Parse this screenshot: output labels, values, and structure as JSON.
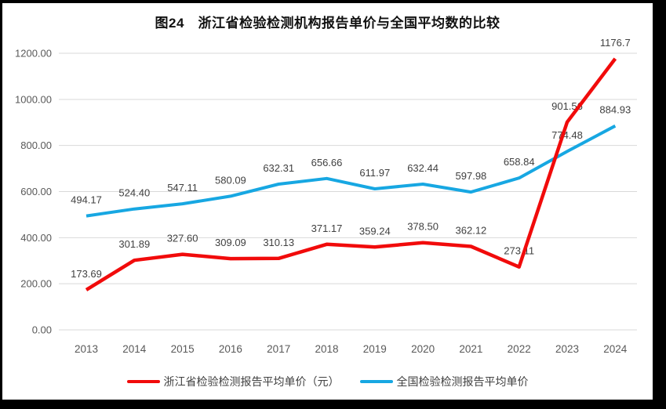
{
  "title": "图24　浙江省检验检测机构报告单价与全国平均数的比较",
  "colors": {
    "frame": "#000000",
    "canvas": "#ffffff",
    "grid": "#d9d9d9",
    "tick_text": "#595959",
    "data_label": "#404040",
    "legend_text": "#404040",
    "zhejiang_red": "#f10b0b",
    "national_blue": "#17a7e2"
  },
  "chart_data": {
    "type": "line",
    "title": "图24　浙江省检验检测机构报告单价与全国平均数的比较",
    "categories": [
      "2013",
      "2014",
      "2015",
      "2016",
      "2017",
      "2018",
      "2019",
      "2020",
      "2021",
      "2022",
      "2023",
      "2024"
    ],
    "series": [
      {
        "name": "浙江省检验检测报告平均单价（元）",
        "color": "#f10b0b",
        "stroke_width": 4.5,
        "values": [
          173.69,
          301.89,
          327.6,
          309.09,
          310.13,
          371.17,
          359.24,
          378.5,
          362.12,
          273.11,
          901.56,
          1176.7
        ],
        "labels": [
          "173.69",
          "301.89",
          "327.60",
          "309.09",
          "310.13",
          "371.17",
          "359.24",
          "378.50",
          "362.12",
          "273.11",
          "901.56",
          "1176.7"
        ]
      },
      {
        "name": "全国检验检测报告平均单价",
        "color": "#17a7e2",
        "stroke_width": 4,
        "values": [
          494.17,
          524.4,
          547.11,
          580.09,
          632.31,
          656.66,
          611.97,
          632.44,
          597.98,
          658.84,
          774.48,
          884.93
        ],
        "labels": [
          "494.17",
          "524.40",
          "547.11",
          "580.09",
          "632.31",
          "656.66",
          "611.97",
          "632.44",
          "597.98",
          "658.84",
          "774.48",
          "884.93"
        ]
      }
    ],
    "xlabel": "",
    "ylabel": "",
    "ylim": [
      0,
      1200
    ],
    "ytick_step": 200,
    "yticks": [
      "0.00",
      "200.00",
      "400.00",
      "600.00",
      "800.00",
      "1000.00",
      "1200.00"
    ],
    "grid": true,
    "legend_position": "bottom"
  }
}
